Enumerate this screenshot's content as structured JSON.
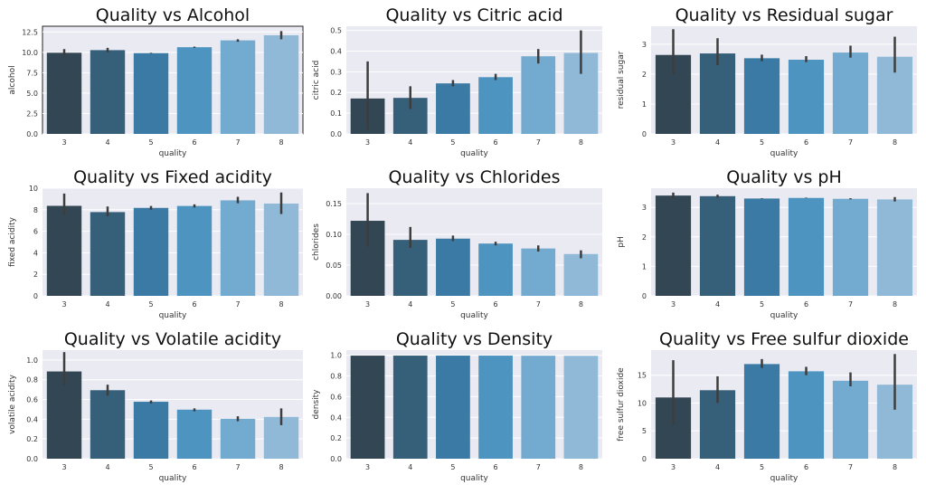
{
  "figure": {
    "title": ""
  },
  "palette": [
    "#334653",
    "#365f7a",
    "#3a7aa4",
    "#4e94c0",
    "#73aacf",
    "#90b9d8"
  ],
  "errbar_color": "#3d3d3d",
  "panel_bg": "#eaeaf2",
  "chart_data": [
    {
      "type": "bar",
      "title": "Quality vs Alcohol",
      "xlabel": "quality",
      "ylabel": "alcohol",
      "categories": [
        "3",
        "4",
        "5",
        "6",
        "7",
        "8"
      ],
      "values": [
        9.95,
        10.27,
        9.9,
        10.63,
        11.47,
        12.09
      ],
      "errors": [
        [
          9.5,
          10.4
        ],
        [
          10.0,
          10.55
        ],
        [
          9.85,
          9.95
        ],
        [
          10.55,
          10.7
        ],
        [
          11.3,
          11.6
        ],
        [
          11.6,
          12.6
        ]
      ],
      "ylim": [
        0,
        13.2
      ],
      "yticks": [
        "0.0",
        "2.5",
        "5.0",
        "7.5",
        "10.0",
        "12.5"
      ],
      "ytick_values": [
        0,
        2.5,
        5,
        7.5,
        10,
        12.5
      ]
    },
    {
      "type": "bar",
      "title": "Quality vs Citric acid",
      "xlabel": "quality",
      "ylabel": "citric acid",
      "categories": [
        "3",
        "4",
        "5",
        "6",
        "7",
        "8"
      ],
      "values": [
        0.171,
        0.174,
        0.244,
        0.274,
        0.375,
        0.391
      ],
      "errors": [
        [
          0.02,
          0.35
        ],
        [
          0.12,
          0.23
        ],
        [
          0.23,
          0.26
        ],
        [
          0.26,
          0.29
        ],
        [
          0.34,
          0.41
        ],
        [
          0.29,
          0.5
        ]
      ],
      "ylim": [
        0,
        0.52
      ],
      "yticks": [
        "0.0",
        "0.1",
        "0.2",
        "0.3",
        "0.4",
        "0.5"
      ],
      "ytick_values": [
        0,
        0.1,
        0.2,
        0.3,
        0.4,
        0.5
      ]
    },
    {
      "type": "bar",
      "title": "Quality vs Residual sugar",
      "xlabel": "quality",
      "ylabel": "residual sugar",
      "categories": [
        "3",
        "4",
        "5",
        "6",
        "7",
        "8"
      ],
      "values": [
        2.64,
        2.69,
        2.53,
        2.48,
        2.72,
        2.58
      ],
      "errors": [
        [
          2.0,
          3.5
        ],
        [
          2.3,
          3.2
        ],
        [
          2.43,
          2.65
        ],
        [
          2.4,
          2.6
        ],
        [
          2.55,
          2.95
        ],
        [
          2.05,
          3.25
        ]
      ],
      "ylim": [
        0,
        3.6
      ],
      "yticks": [
        "0",
        "1",
        "2",
        "3"
      ],
      "ytick_values": [
        0,
        1,
        2,
        3
      ]
    },
    {
      "type": "bar",
      "title": "Quality vs Fixed acidity",
      "xlabel": "quality",
      "ylabel": "fixed acidity",
      "categories": [
        "3",
        "4",
        "5",
        "6",
        "7",
        "8"
      ],
      "values": [
        8.36,
        7.78,
        8.17,
        8.35,
        8.87,
        8.57
      ],
      "errors": [
        [
          7.5,
          9.5
        ],
        [
          7.4,
          8.3
        ],
        [
          8.0,
          8.35
        ],
        [
          8.2,
          8.5
        ],
        [
          8.6,
          9.2
        ],
        [
          7.6,
          9.6
        ]
      ],
      "ylim": [
        0,
        10
      ],
      "yticks": [
        "0",
        "2",
        "4",
        "6",
        "8",
        "10"
      ],
      "ytick_values": [
        0,
        2,
        4,
        6,
        8,
        10
      ]
    },
    {
      "type": "bar",
      "title": "Quality vs Chlorides",
      "xlabel": "quality",
      "ylabel": "chlorides",
      "categories": [
        "3",
        "4",
        "5",
        "6",
        "7",
        "8"
      ],
      "values": [
        0.122,
        0.091,
        0.093,
        0.085,
        0.077,
        0.068
      ],
      "errors": [
        [
          0.08,
          0.167
        ],
        [
          0.078,
          0.112
        ],
        [
          0.089,
          0.098
        ],
        [
          0.082,
          0.088
        ],
        [
          0.072,
          0.082
        ],
        [
          0.061,
          0.074
        ]
      ],
      "ylim": [
        0,
        0.175
      ],
      "yticks": [
        "0.00",
        "0.05",
        "0.10",
        "0.15"
      ],
      "ytick_values": [
        0,
        0.05,
        0.1,
        0.15
      ]
    },
    {
      "type": "bar",
      "title": "Quality vs pH",
      "xlabel": "quality",
      "ylabel": "pH",
      "categories": [
        "3",
        "4",
        "5",
        "6",
        "7",
        "8"
      ],
      "values": [
        3.4,
        3.38,
        3.3,
        3.32,
        3.29,
        3.27
      ],
      "errors": [
        [
          3.3,
          3.5
        ],
        [
          3.33,
          3.43
        ],
        [
          3.29,
          3.31
        ],
        [
          3.31,
          3.33
        ],
        [
          3.27,
          3.31
        ],
        [
          3.2,
          3.35
        ]
      ],
      "ylim": [
        0,
        3.65
      ],
      "yticks": [
        "0",
        "1",
        "2",
        "3"
      ],
      "ytick_values": [
        0,
        1,
        2,
        3
      ]
    },
    {
      "type": "bar",
      "title": "Quality vs Volatile acidity",
      "xlabel": "quality",
      "ylabel": "volatile acidity",
      "categories": [
        "3",
        "4",
        "5",
        "6",
        "7",
        "8"
      ],
      "values": [
        0.884,
        0.694,
        0.577,
        0.497,
        0.404,
        0.423
      ],
      "errors": [
        [
          0.75,
          1.08
        ],
        [
          0.64,
          0.75
        ],
        [
          0.56,
          0.59
        ],
        [
          0.48,
          0.51
        ],
        [
          0.38,
          0.43
        ],
        [
          0.34,
          0.51
        ]
      ],
      "ylim": [
        0,
        1.1
      ],
      "yticks": [
        "0.0",
        "0.2",
        "0.4",
        "0.6",
        "0.8",
        "1.0"
      ],
      "ytick_values": [
        0,
        0.2,
        0.4,
        0.6,
        0.8,
        1.0
      ]
    },
    {
      "type": "bar",
      "title": "Quality vs Density",
      "xlabel": "quality",
      "ylabel": "density",
      "categories": [
        "3",
        "4",
        "5",
        "6",
        "7",
        "8"
      ],
      "values": [
        0.997,
        0.997,
        0.997,
        0.997,
        0.996,
        0.995
      ],
      "errors": [
        [
          0.997,
          0.997
        ],
        [
          0.997,
          0.997
        ],
        [
          0.997,
          0.997
        ],
        [
          0.997,
          0.997
        ],
        [
          0.996,
          0.996
        ],
        [
          0.995,
          0.995
        ]
      ],
      "ylim": [
        0,
        1.05
      ],
      "yticks": [
        "0.0",
        "0.2",
        "0.4",
        "0.6",
        "0.8",
        "1.0"
      ],
      "ytick_values": [
        0,
        0.2,
        0.4,
        0.6,
        0.8,
        1.0
      ]
    },
    {
      "type": "bar",
      "title": "Quality vs Free sulfur dioxide",
      "xlabel": "quality",
      "ylabel": "free sulfur dioxide",
      "categories": [
        "3",
        "4",
        "5",
        "6",
        "7",
        "8"
      ],
      "values": [
        11.0,
        12.3,
        17.0,
        15.7,
        14.0,
        13.3
      ],
      "errors": [
        [
          6.0,
          17.7
        ],
        [
          10.0,
          14.8
        ],
        [
          16.3,
          17.9
        ],
        [
          15.0,
          16.5
        ],
        [
          13.0,
          15.5
        ],
        [
          8.8,
          18.8
        ]
      ],
      "ylim": [
        0,
        19.5
      ],
      "yticks": [
        "0",
        "5",
        "10",
        "15"
      ],
      "ytick_values": [
        0,
        5,
        10,
        15
      ]
    }
  ]
}
